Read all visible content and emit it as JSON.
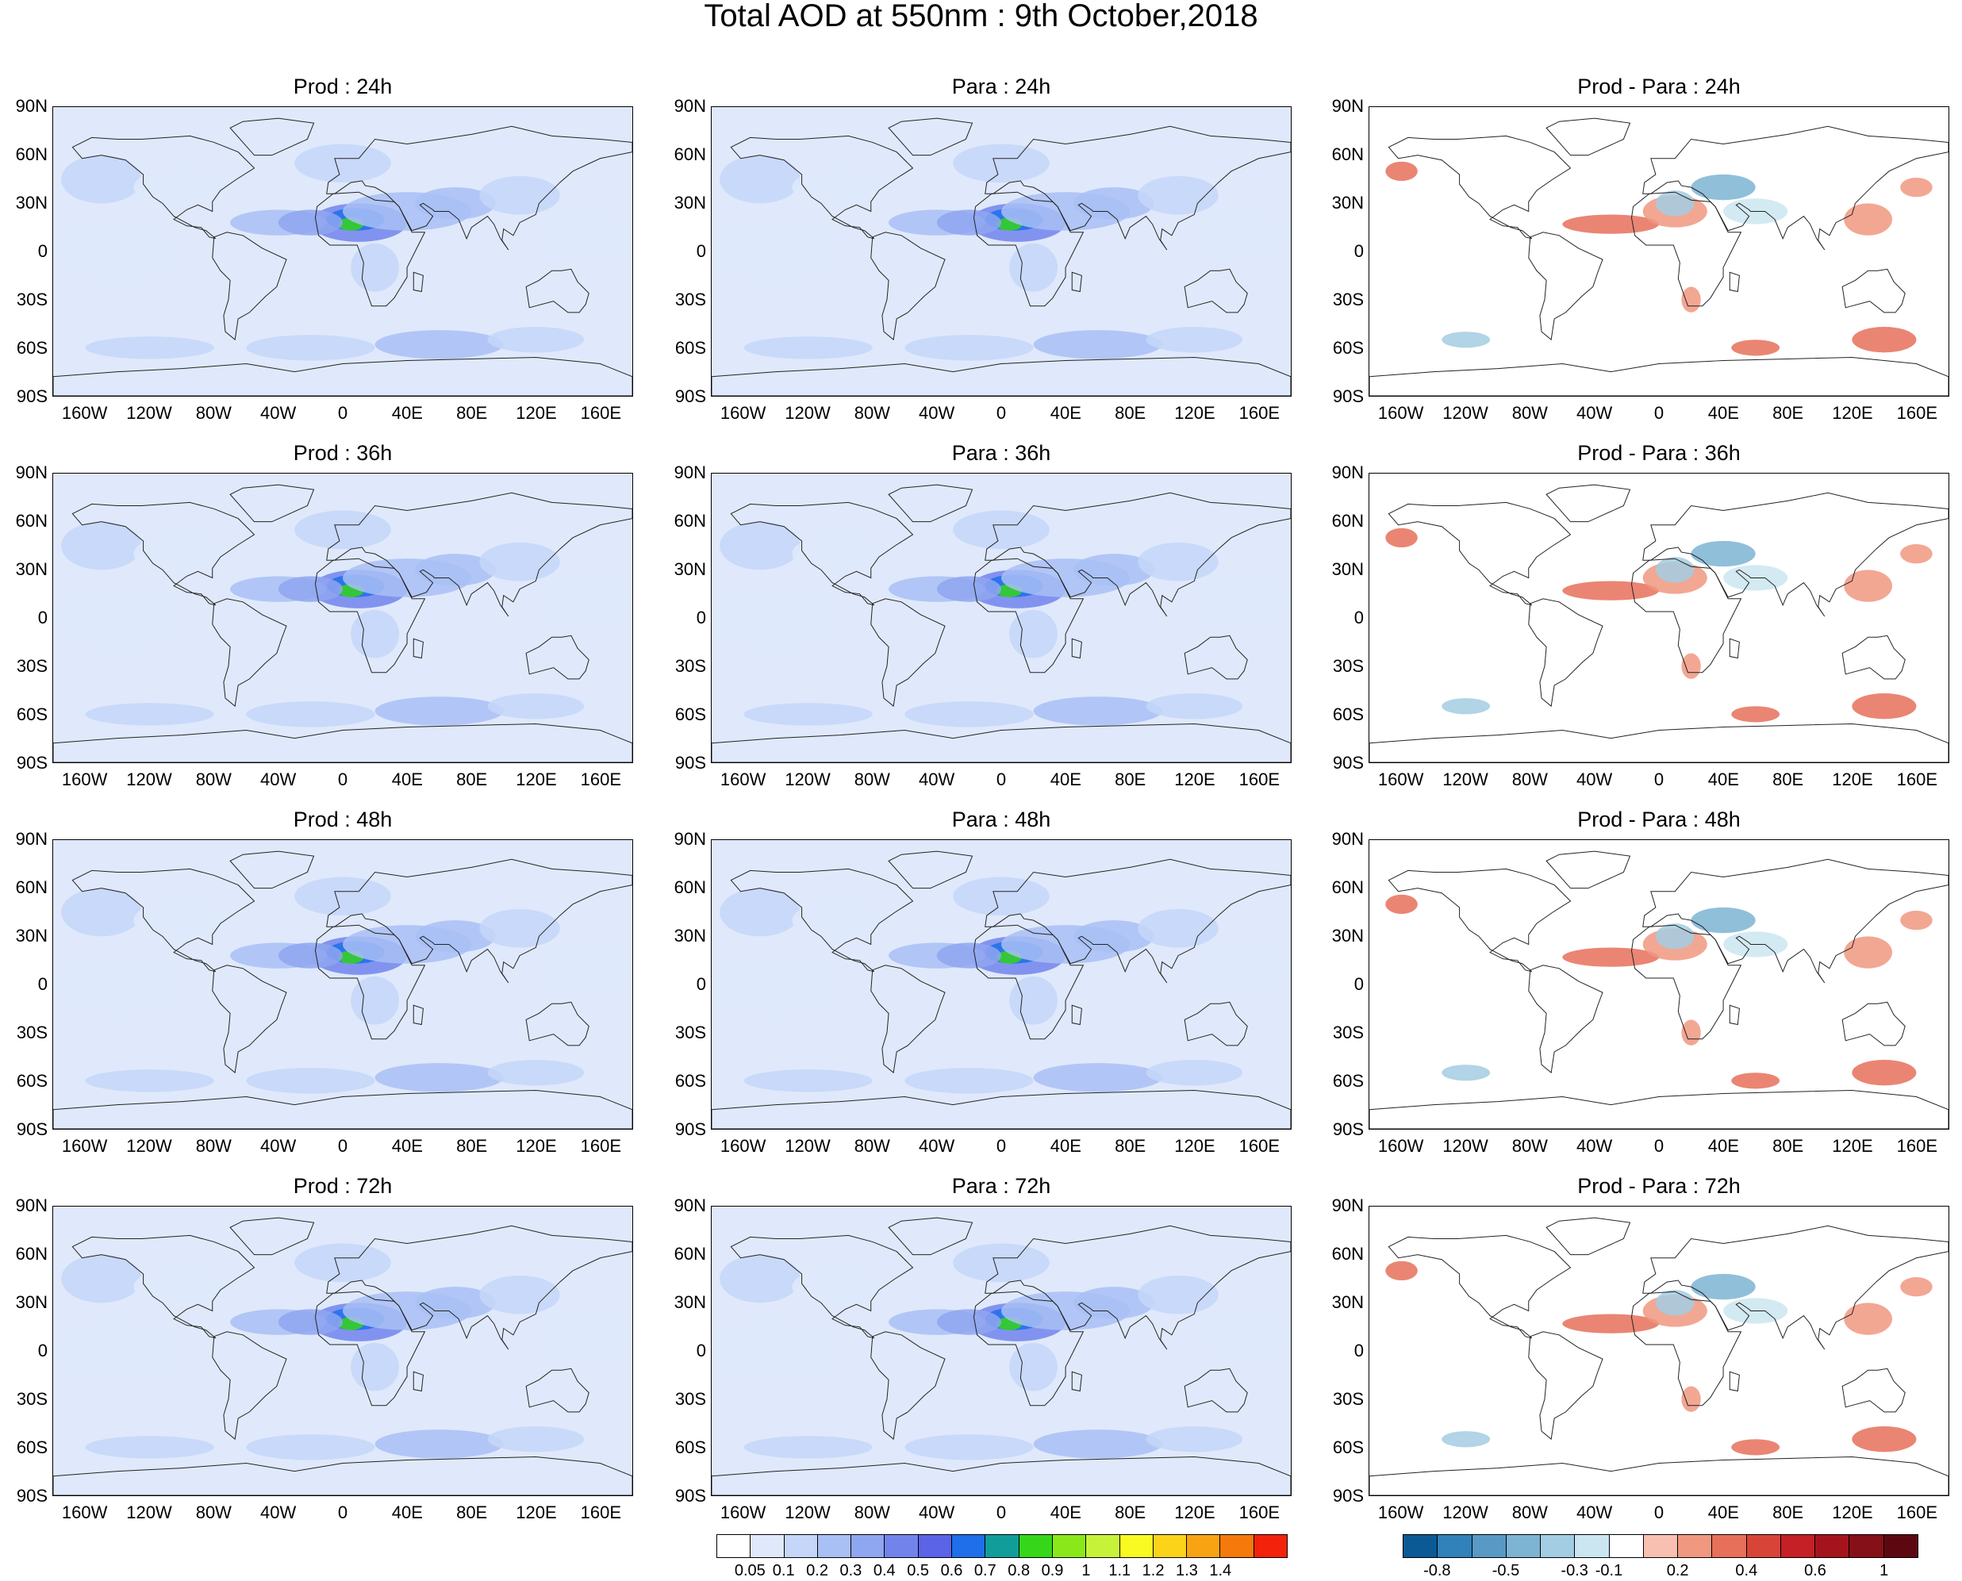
{
  "title": "Total AOD at 550nm : 9th October,2018",
  "columns": [
    "Prod",
    "Para",
    "Prod - Para"
  ],
  "panel_titles": [
    [
      "Prod : 24h",
      "Para : 24h",
      "Prod - Para : 24h"
    ],
    [
      "Prod : 36h",
      "Para : 36h",
      "Prod - Para : 36h"
    ],
    [
      "Prod : 48h",
      "Para : 48h",
      "Prod - Para : 48h"
    ],
    [
      "Prod : 72h",
      "Para : 72h",
      "Prod - Para : 72h"
    ]
  ],
  "lat_labels": [
    "90N",
    "60N",
    "30N",
    "0",
    "30S",
    "60S",
    "90S"
  ],
  "lon_labels": [
    "160W",
    "120W",
    "80W",
    "40W",
    "0",
    "40E",
    "80E",
    "120E",
    "160E"
  ],
  "colorbar_aod": {
    "labels": [
      "0.05",
      "0.1",
      "0.2",
      "0.3",
      "0.4",
      "0.5",
      "0.6",
      "0.7",
      "0.8",
      "0.9",
      "1",
      "1.1",
      "1.2",
      "1.3",
      "1.4"
    ],
    "colors": [
      "#ffffff",
      "#dfe9fb",
      "#c6d6f8",
      "#a9c0f5",
      "#8fa6f0",
      "#7284ec",
      "#5b63e6",
      "#1f6eea",
      "#119e9a",
      "#36d61a",
      "#8ae81a",
      "#c7f23a",
      "#f8fa22",
      "#fbd41a",
      "#f8a412",
      "#f57a0b",
      "#f2230a"
    ]
  },
  "colorbar_diff": {
    "labels": [
      "-0.8",
      "-0.5",
      "-0.3",
      "-0.1",
      "0.2",
      "0.4",
      "0.6",
      "1"
    ],
    "colors": [
      "#0b5a96",
      "#3181ba",
      "#5899c5",
      "#7db4d3",
      "#a3cde2",
      "#cbe6f1",
      "#ffffff",
      "#f8c0b0",
      "#f09880",
      "#e6705a",
      "#d84538",
      "#c42026",
      "#a5141d",
      "#861018",
      "#5d0810"
    ]
  }
}
